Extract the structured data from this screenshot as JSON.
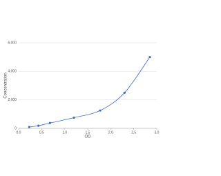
{
  "chart_data": {
    "type": "scatter",
    "xlabel": "OD",
    "ylabel": "Concentration",
    "x": [
      0.23,
      0.43,
      0.68,
      1.2,
      1.77,
      2.3,
      2.85
    ],
    "values": [
      94,
      188,
      375,
      750,
      1250,
      2500,
      5000
    ],
    "color": "#3a6cc6",
    "smooth": true,
    "grid": true,
    "xlim": [
      0,
      3
    ],
    "xticks": [
      {
        "value": 0,
        "label": "0.0"
      },
      {
        "value": 0.5,
        "label": "0.5"
      },
      {
        "value": 1,
        "label": "1.0"
      },
      {
        "value": 1.5,
        "label": "1.5"
      },
      {
        "value": 2,
        "label": "2.0"
      },
      {
        "value": 2.5,
        "label": "2.5"
      },
      {
        "value": 3,
        "label": "3.0"
      }
    ],
    "ylim": [
      0,
      6000
    ],
    "yticks": [
      0,
      {
        "value": 2000,
        "label": "2,000"
      },
      {
        "value": 4000,
        "label": "4,000"
      },
      {
        "value": 6000,
        "label": "6,000"
      }
    ]
  }
}
